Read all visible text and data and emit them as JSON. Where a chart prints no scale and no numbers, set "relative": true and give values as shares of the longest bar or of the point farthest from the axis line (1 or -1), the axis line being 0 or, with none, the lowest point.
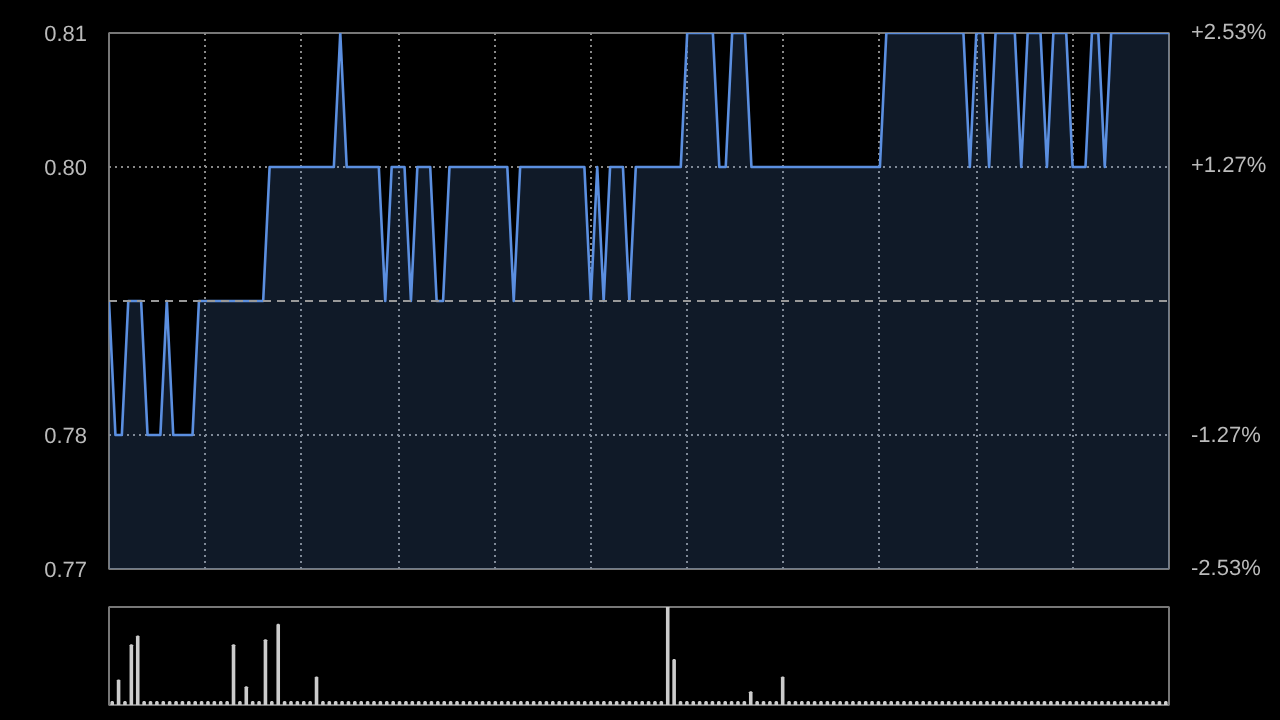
{
  "chart_data": [
    {
      "type": "area",
      "categories": [
        null,
        null,
        null,
        null,
        null,
        null,
        null,
        null,
        null,
        null,
        null,
        null,
        null,
        null,
        null,
        null,
        null,
        null,
        null,
        null,
        null,
        null,
        null,
        null,
        null,
        null,
        null,
        null,
        null,
        null,
        null,
        null,
        null,
        null,
        null,
        null,
        null,
        null,
        null,
        null,
        null,
        null,
        null,
        null,
        null,
        null,
        null,
        null,
        null,
        null,
        null,
        null,
        null,
        null,
        null,
        null,
        null,
        null,
        null,
        null,
        null,
        null,
        null,
        null,
        null,
        null,
        null,
        null,
        null,
        null,
        null,
        null,
        null,
        null,
        null,
        null,
        null,
        null,
        null,
        null,
        null,
        null,
        null,
        null,
        null,
        null,
        null,
        null,
        null,
        null,
        null,
        null,
        null,
        null,
        null,
        null,
        null,
        null,
        null,
        null,
        null,
        null,
        null,
        null,
        null,
        null,
        null,
        null,
        null,
        null,
        null,
        null,
        null,
        null,
        null,
        null,
        null,
        null,
        null,
        null,
        null,
        null,
        null,
        null,
        null,
        null,
        null,
        null,
        null,
        null,
        null,
        null,
        null,
        null,
        null,
        null,
        null,
        null,
        null,
        null,
        null,
        null,
        null,
        null,
        null,
        null,
        null,
        null,
        null,
        null,
        null,
        null,
        null,
        null,
        null,
        null,
        null,
        null,
        null,
        null,
        null,
        null,
        null,
        null,
        null,
        null
      ],
      "series": [
        {
          "color": "#5b8fe0",
          "values": [
            0.79,
            0.78,
            0.78,
            0.79,
            0.79,
            0.79,
            0.78,
            0.78,
            0.78,
            0.79,
            0.78,
            0.78,
            0.78,
            0.78,
            0.79,
            0.79,
            0.79,
            0.79,
            0.79,
            0.79,
            0.79,
            0.79,
            0.79,
            0.79,
            0.79,
            0.8,
            0.8,
            0.8,
            0.8,
            0.8,
            0.8,
            0.8,
            0.8,
            0.8,
            0.8,
            0.8,
            0.81,
            0.8,
            0.8,
            0.8,
            0.8,
            0.8,
            0.8,
            0.79,
            0.8,
            0.8,
            0.8,
            0.79,
            0.8,
            0.8,
            0.8,
            0.79,
            0.79,
            0.8,
            0.8,
            0.8,
            0.8,
            0.8,
            0.8,
            0.8,
            0.8,
            0.8,
            0.8,
            0.79,
            0.8,
            0.8,
            0.8,
            0.8,
            0.8,
            0.8,
            0.8,
            0.8,
            0.8,
            0.8,
            0.8,
            0.79,
            0.8,
            0.79,
            0.8,
            0.8,
            0.8,
            0.79,
            0.8,
            0.8,
            0.8,
            0.8,
            0.8,
            0.8,
            0.8,
            0.8,
            0.81,
            0.81,
            0.81,
            0.81,
            0.81,
            0.8,
            0.8,
            0.81,
            0.81,
            0.81,
            0.8,
            0.8,
            0.8,
            0.8,
            0.8,
            0.8,
            0.8,
            0.8,
            0.8,
            0.8,
            0.8,
            0.8,
            0.8,
            0.8,
            0.8,
            0.8,
            0.8,
            0.8,
            0.8,
            0.8,
            0.8,
            0.81,
            0.81,
            0.81,
            0.81,
            0.81,
            0.81,
            0.81,
            0.81,
            0.81,
            0.81,
            0.81,
            0.81,
            0.81,
            0.8,
            0.81,
            0.81,
            0.8,
            0.81,
            0.81,
            0.81,
            0.81,
            0.8,
            0.81,
            0.81,
            0.81,
            0.8,
            0.81,
            0.81,
            0.81,
            0.8,
            0.8,
            0.8,
            0.81,
            0.81,
            0.8,
            0.81,
            0.81,
            0.81,
            0.81,
            0.81,
            0.81,
            0.81,
            0.81,
            0.81,
            0.81
          ]
        }
      ],
      "ylim": [
        0.77,
        0.81
      ],
      "yticks": [
        0.77,
        0.78,
        {
          "value": 0.8,
          "label": "0.80"
        },
        0.81
      ],
      "y2lim": [
        -2.53,
        2.53
      ],
      "y2ticks": [
        {
          "value": -2.53,
          "label": "-2.53%"
        },
        {
          "value": -1.27,
          "label": "-1.27%"
        },
        {
          "value": 1.27,
          "label": "+1.27%"
        },
        {
          "value": 2.53,
          "label": "+2.53%"
        }
      ],
      "ref_lines": [
        {
          "axis": "y",
          "value": 0.79,
          "line_style": "dashed",
          "color": "#999999"
        }
      ],
      "grid": true,
      "tick_labels": "y"
    },
    {
      "type": "bar",
      "relative": true,
      "tick_labels": false,
      "categories": [
        null,
        null,
        null,
        null,
        null,
        null,
        null,
        null,
        null,
        null,
        null,
        null,
        null,
        null,
        null,
        null,
        null,
        null,
        null,
        null,
        null,
        null,
        null,
        null,
        null,
        null,
        null,
        null,
        null,
        null,
        null,
        null,
        null,
        null,
        null,
        null,
        null,
        null,
        null,
        null,
        null,
        null,
        null,
        null,
        null,
        null,
        null,
        null,
        null,
        null,
        null,
        null,
        null,
        null,
        null,
        null,
        null,
        null,
        null,
        null,
        null,
        null,
        null,
        null,
        null,
        null,
        null,
        null,
        null,
        null,
        null,
        null,
        null,
        null,
        null,
        null,
        null,
        null,
        null,
        null,
        null,
        null,
        null,
        null,
        null,
        null,
        null,
        null,
        null,
        null,
        null,
        null,
        null,
        null,
        null,
        null,
        null,
        null,
        null,
        null,
        null,
        null,
        null,
        null,
        null,
        null,
        null,
        null,
        null,
        null,
        null,
        null,
        null,
        null,
        null,
        null,
        null,
        null,
        null,
        null,
        null,
        null,
        null,
        null,
        null,
        null,
        null,
        null,
        null,
        null,
        null,
        null,
        null,
        null,
        null,
        null,
        null,
        null,
        null,
        null,
        null,
        null,
        null,
        null,
        null,
        null,
        null,
        null,
        null,
        null,
        null,
        null,
        null,
        null,
        null,
        null,
        null,
        null,
        null,
        null,
        null,
        null,
        null,
        null,
        null,
        null
      ],
      "series": [
        {
          "color": "#cccccc",
          "values": [
            0.03,
            0.25,
            0.03,
            0.61,
            0.7,
            0.03,
            0.03,
            0.03,
            0.03,
            0.03,
            0.03,
            0.03,
            0.03,
            0.03,
            0.03,
            0.03,
            0.03,
            0.03,
            0.03,
            0.61,
            0.03,
            0.18,
            0.03,
            0.03,
            0.66,
            0.03,
            0.82,
            0.03,
            0.03,
            0.03,
            0.03,
            0.03,
            0.28,
            0.03,
            0.03,
            0.03,
            0.03,
            0.03,
            0.03,
            0.03,
            0.03,
            0.03,
            0.03,
            0.03,
            0.03,
            0.03,
            0.03,
            0.03,
            0.03,
            0.03,
            0.03,
            0.03,
            0.03,
            0.03,
            0.03,
            0.03,
            0.03,
            0.03,
            0.03,
            0.03,
            0.03,
            0.03,
            0.03,
            0.03,
            0.03,
            0.03,
            0.03,
            0.03,
            0.03,
            0.03,
            0.03,
            0.03,
            0.03,
            0.03,
            0.03,
            0.03,
            0.03,
            0.03,
            0.03,
            0.03,
            0.03,
            0.03,
            0.03,
            0.03,
            0.03,
            0.03,
            0.03,
            1.0,
            0.46,
            0.03,
            0.03,
            0.03,
            0.03,
            0.03,
            0.03,
            0.03,
            0.03,
            0.03,
            0.03,
            0.03,
            0.13,
            0.03,
            0.03,
            0.03,
            0.03,
            0.28,
            0.03,
            0.03,
            0.03,
            0.03,
            0.03,
            0.03,
            0.03,
            0.03,
            0.03,
            0.03,
            0.03,
            0.03,
            0.03,
            0.03,
            0.03,
            0.03,
            0.03,
            0.03,
            0.03,
            0.03,
            0.03,
            0.03,
            0.03,
            0.03,
            0.03,
            0.03,
            0.03,
            0.03,
            0.03,
            0.03,
            0.03,
            0.03,
            0.03,
            0.03,
            0.03,
            0.03,
            0.03,
            0.03,
            0.03,
            0.03,
            0.03,
            0.03,
            0.03,
            0.03,
            0.03,
            0.03,
            0.03,
            0.03,
            0.03,
            0.03,
            0.03,
            0.03,
            0.03,
            0.03,
            0.03,
            0.03,
            0.03,
            0.03,
            0.03,
            0.03
          ]
        }
      ]
    }
  ]
}
